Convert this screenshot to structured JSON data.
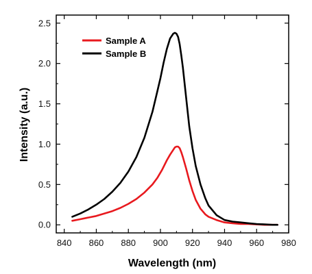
{
  "chart_data": {
    "type": "line",
    "xlabel": "Wavelength (nm)",
    "ylabel": "Intensity (a.u.)",
    "xlim": [
      835,
      980
    ],
    "ylim": [
      -0.1,
      2.6
    ],
    "xticks": [
      840,
      860,
      880,
      900,
      920,
      940,
      960,
      980
    ],
    "yticks": [
      0.0,
      0.5,
      1.0,
      1.5,
      2.0,
      2.5
    ],
    "ytick_labels": [
      "0.0",
      "0.5",
      "1.0",
      "1.5",
      "2.0",
      "2.5"
    ],
    "grid": false,
    "legend": "top-left",
    "series": [
      {
        "name": "Sample A",
        "color": "#e8191e",
        "x": [
          845,
          850,
          855,
          860,
          865,
          870,
          875,
          880,
          885,
          890,
          895,
          898,
          901,
          904,
          906,
          908,
          909,
          910,
          911,
          912,
          913,
          914,
          916,
          918,
          920,
          922,
          925,
          928,
          930,
          935,
          940,
          945,
          950,
          955,
          960,
          965,
          970,
          973
        ],
        "values": [
          0.05,
          0.07,
          0.09,
          0.11,
          0.14,
          0.17,
          0.21,
          0.26,
          0.32,
          0.4,
          0.5,
          0.58,
          0.68,
          0.8,
          0.87,
          0.93,
          0.96,
          0.97,
          0.97,
          0.95,
          0.9,
          0.84,
          0.7,
          0.55,
          0.42,
          0.31,
          0.2,
          0.13,
          0.1,
          0.06,
          0.03,
          0.02,
          0.01,
          0.01,
          0.005,
          0.0,
          0.0,
          0.0
        ]
      },
      {
        "name": "Sample B",
        "color": "#000000",
        "x": [
          845,
          850,
          855,
          860,
          865,
          870,
          875,
          880,
          885,
          890,
          895,
          898,
          900,
          902,
          904,
          906,
          908,
          909,
          910,
          911,
          912,
          913,
          914,
          916,
          918,
          920,
          922,
          925,
          928,
          930,
          935,
          940,
          945,
          950,
          955,
          960,
          965,
          970,
          973
        ],
        "values": [
          0.1,
          0.14,
          0.19,
          0.25,
          0.32,
          0.41,
          0.52,
          0.66,
          0.84,
          1.08,
          1.4,
          1.65,
          1.82,
          2.01,
          2.18,
          2.31,
          2.37,
          2.38,
          2.37,
          2.33,
          2.24,
          2.1,
          1.95,
          1.58,
          1.22,
          0.95,
          0.73,
          0.5,
          0.33,
          0.24,
          0.12,
          0.06,
          0.04,
          0.03,
          0.02,
          0.01,
          0.005,
          0.0,
          0.0
        ]
      }
    ]
  }
}
